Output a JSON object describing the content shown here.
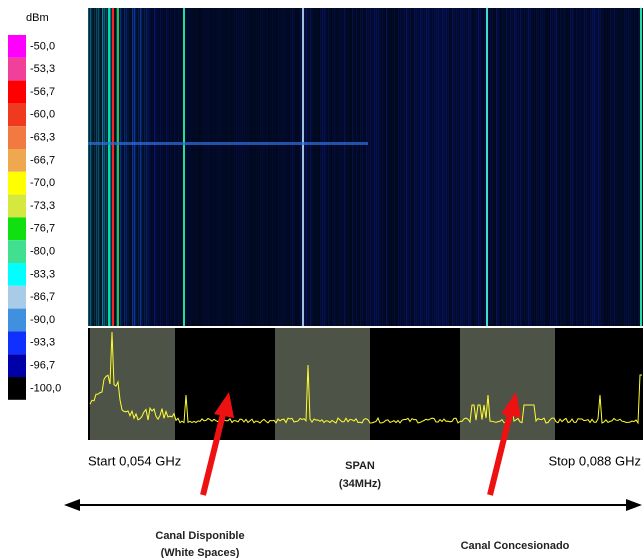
{
  "legend": {
    "unit": "dBm",
    "entries": [
      {
        "label": "-50,0",
        "color": "#ff00ff"
      },
      {
        "label": "-53,3",
        "color": "#f0409a"
      },
      {
        "label": "-56,7",
        "color": "#ff0000"
      },
      {
        "label": "-60,0",
        "color": "#f03a20"
      },
      {
        "label": "-63,3",
        "color": "#f07a40"
      },
      {
        "label": "-66,7",
        "color": "#f0a850"
      },
      {
        "label": "-70,0",
        "color": "#ffff00"
      },
      {
        "label": "-73,3",
        "color": "#d4e840"
      },
      {
        "label": "-76,7",
        "color": "#10e010"
      },
      {
        "label": "-80,0",
        "color": "#40e090"
      },
      {
        "label": "-83,3",
        "color": "#00ffff"
      },
      {
        "label": "-86,7",
        "color": "#a8cce8"
      },
      {
        "label": "-90,0",
        "color": "#4090e0"
      },
      {
        "label": "-93,3",
        "color": "#1030ff"
      },
      {
        "label": "-96,7",
        "color": "#0000a8"
      },
      {
        "label": "-100,0",
        "color": "#000000"
      }
    ]
  },
  "axis": {
    "start": "Start 0,054 GHz",
    "span": "SPAN",
    "span_value": "(34MHz)",
    "stop": "Stop 0,088 GHz"
  },
  "annotations": {
    "available": "Canal Disponible",
    "available_note": "(White Spaces)",
    "licensed": "Canal Concesionado"
  }
}
